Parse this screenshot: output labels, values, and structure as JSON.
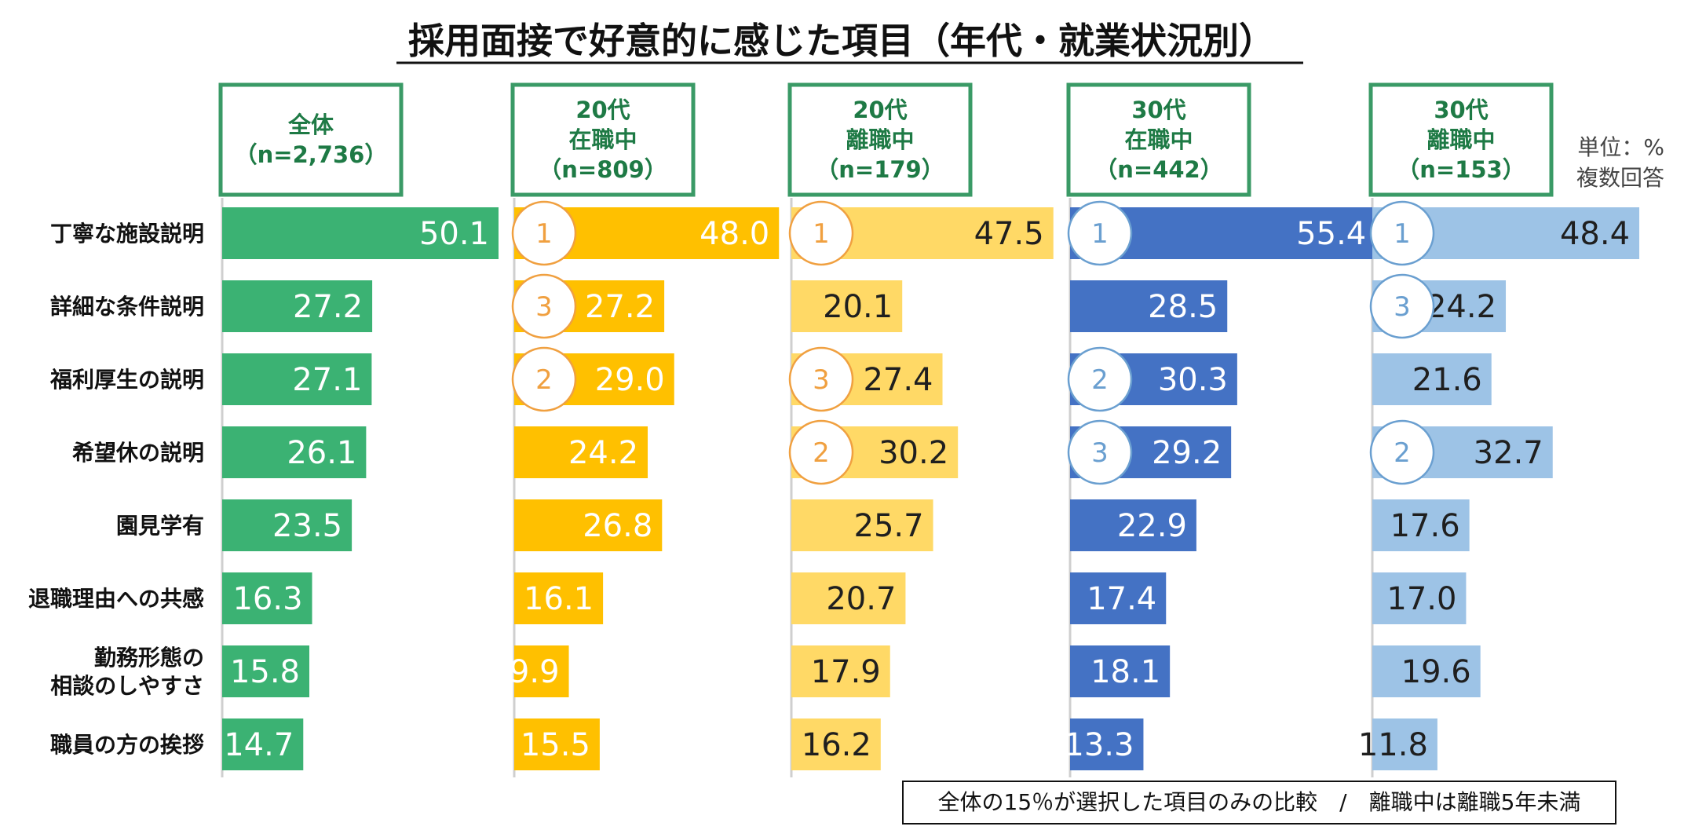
{
  "colors": {
    "all": "#3bb273",
    "age20_employed": "#ffc000",
    "age20_unemployed": "#ffd966",
    "age30_employed": "#4472c4",
    "age30_unemployed": "#9dc3e6",
    "header_border": "#3a9a66",
    "header_text": "#1e7a45",
    "rank_orange": "#f0a040",
    "rank_blue": "#6a9fd0"
  },
  "unit_note": [
    "単位：%",
    "複数回答"
  ],
  "footnote": "全体の15％が選択した項目のみの比較　/　離職中は離職5年未満",
  "chart_data": {
    "type": "bar",
    "title": "採用面接で好意的に感じた項目（年代・就業状況別）",
    "categories": [
      "丁寧な施設説明",
      "詳細な条件説明",
      "福利厚生の説明",
      "希望休の説明",
      "園見学有",
      "退職理由への共感",
      "勤務形態の\n相談のしやすさ",
      "職員の方の挨拶"
    ],
    "series": [
      {
        "name": "全体\n（n=2,736）",
        "values": [
          50.1,
          27.2,
          27.1,
          26.1,
          23.5,
          16.3,
          15.8,
          14.7
        ],
        "ranks": [
          null,
          null,
          null,
          null,
          null,
          null,
          null,
          null
        ]
      },
      {
        "name": "20代\n在職中\n（n=809）",
        "values": [
          48.0,
          27.2,
          29.0,
          24.2,
          26.8,
          16.1,
          9.9,
          15.5
        ],
        "ranks": [
          1,
          3,
          2,
          null,
          null,
          null,
          null,
          null
        ]
      },
      {
        "name": "20代\n離職中\n（n=179）",
        "values": [
          47.5,
          20.1,
          27.4,
          30.2,
          25.7,
          20.7,
          17.9,
          16.2
        ],
        "ranks": [
          1,
          null,
          3,
          2,
          null,
          null,
          null,
          null
        ]
      },
      {
        "name": "30代\n在職中\n（n=442）",
        "values": [
          55.4,
          28.5,
          30.3,
          29.2,
          22.9,
          17.4,
          18.1,
          13.3
        ],
        "ranks": [
          1,
          null,
          2,
          3,
          null,
          null,
          null,
          null
        ]
      },
      {
        "name": "30代\n離職中\n（n=153）",
        "values": [
          48.4,
          24.2,
          21.6,
          32.7,
          17.6,
          17.0,
          19.6,
          11.8
        ],
        "ranks": [
          1,
          3,
          null,
          2,
          null,
          null,
          null,
          null
        ]
      }
    ]
  }
}
